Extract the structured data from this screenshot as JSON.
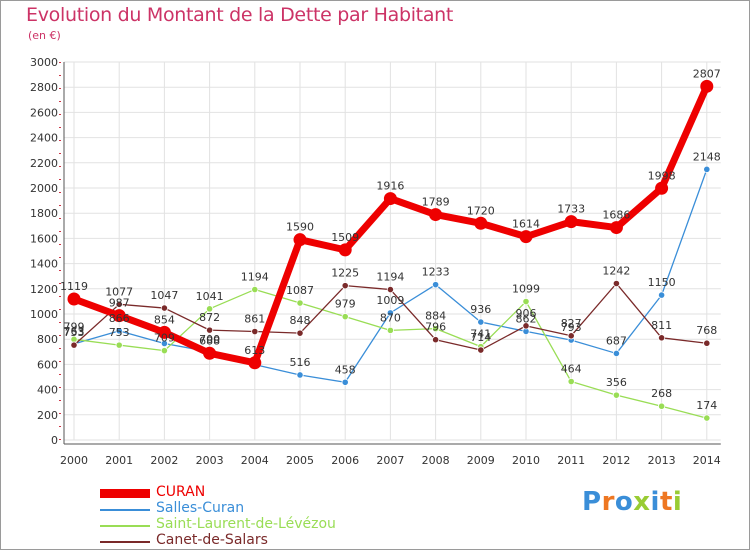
{
  "chart_data": {
    "type": "line",
    "title": "Evolution du Montant de la Dette par Habitant",
    "unit_label": "(en €)",
    "xlabel": "",
    "ylabel": "",
    "x": [
      "2000",
      "2001",
      "2002",
      "2003",
      "2004",
      "2005",
      "2006",
      "2007",
      "2008",
      "2009",
      "2010",
      "2011",
      "2012",
      "2013",
      "2014"
    ],
    "ylim": [
      0,
      3000
    ],
    "yticks": [
      "0",
      "200",
      "400",
      "600",
      "800",
      "1000",
      "1200",
      "1400",
      "1600",
      "1800",
      "2000",
      "2200",
      "2400",
      "2600",
      "2800",
      "3000"
    ],
    "grid": true,
    "legend_position": "bottom-left",
    "series": [
      {
        "name": "CURAN",
        "color": "#ee0000",
        "labels": true,
        "values": [
          1119,
          987,
          854,
          688,
          613,
          1590,
          1509,
          1916,
          1789,
          1720,
          1614,
          1733,
          1686,
          1998,
          2807
        ]
      },
      {
        "name": "Salles-Curan",
        "color": "#3a8ed8",
        "labels": false,
        "values": [
          763,
          866,
          766,
          700,
          598,
          516,
          458,
          1009,
          1233,
          936,
          862,
          793,
          687,
          1150,
          2148
        ]
      },
      {
        "name": "Saint-Laurent-de-Lévézou",
        "color": "#99dd55",
        "labels": false,
        "values": [
          799,
          753,
          709,
          1041,
          1194,
          1087,
          979,
          870,
          884,
          741,
          1099,
          464,
          356,
          268,
          174
        ]
      },
      {
        "name": "Canet-de-Salars",
        "color": "#7a2a2a",
        "labels": false,
        "values": [
          753,
          1077,
          1047,
          872,
          861,
          848,
          1225,
          1194,
          796,
          714,
          906,
          827,
          1242,
          811,
          768
        ]
      }
    ],
    "point_labels": [
      {
        "x": "2000",
        "text": "1119",
        "value": 1119
      },
      {
        "x": "2000",
        "text": "799",
        "value": 799
      },
      {
        "x": "2000",
        "text": "763",
        "value": 763
      },
      {
        "x": "2000",
        "text": "753",
        "value": 753
      },
      {
        "x": "2001",
        "text": "1077",
        "value": 1077
      },
      {
        "x": "2001",
        "text": "987",
        "value": 987
      },
      {
        "x": "2001",
        "text": "866",
        "value": 866
      },
      {
        "x": "2001",
        "text": "753",
        "value": 753
      },
      {
        "x": "2002",
        "text": "1047",
        "value": 1047
      },
      {
        "x": "2002",
        "text": "854",
        "value": 854
      },
      {
        "x": "2002",
        "text": "709",
        "value": 709
      },
      {
        "x": "2003",
        "text": "1041",
        "value": 1041
      },
      {
        "x": "2003",
        "text": "872",
        "value": 872
      },
      {
        "x": "2003",
        "text": "700",
        "value": 700
      },
      {
        "x": "2003",
        "text": "688",
        "value": 688
      },
      {
        "x": "2004",
        "text": "1194",
        "value": 1194
      },
      {
        "x": "2004",
        "text": "861",
        "value": 861
      },
      {
        "x": "2004",
        "text": "613",
        "value": 613
      },
      {
        "x": "2005",
        "text": "1590",
        "value": 1590
      },
      {
        "x": "2005",
        "text": "1087",
        "value": 1087
      },
      {
        "x": "2005",
        "text": "848",
        "value": 848
      },
      {
        "x": "2005",
        "text": "516",
        "value": 516
      },
      {
        "x": "2006",
        "text": "1509",
        "value": 1509
      },
      {
        "x": "2006",
        "text": "1225",
        "value": 1225
      },
      {
        "x": "2006",
        "text": "979",
        "value": 979
      },
      {
        "x": "2006",
        "text": "458",
        "value": 458
      },
      {
        "x": "2007",
        "text": "1916",
        "value": 1916
      },
      {
        "x": "2007",
        "text": "1194",
        "value": 1194
      },
      {
        "x": "2007",
        "text": "1009",
        "value": 1009
      },
      {
        "x": "2007",
        "text": "870",
        "value": 870
      },
      {
        "x": "2008",
        "text": "1789",
        "value": 1789
      },
      {
        "x": "2008",
        "text": "1233",
        "value": 1233
      },
      {
        "x": "2008",
        "text": "884",
        "value": 884
      },
      {
        "x": "2008",
        "text": "796",
        "value": 796
      },
      {
        "x": "2009",
        "text": "1720",
        "value": 1720
      },
      {
        "x": "2009",
        "text": "936",
        "value": 936
      },
      {
        "x": "2009",
        "text": "741",
        "value": 741
      },
      {
        "x": "2009",
        "text": "714",
        "value": 714
      },
      {
        "x": "2010",
        "text": "1614",
        "value": 1614
      },
      {
        "x": "2010",
        "text": "1099",
        "value": 1099
      },
      {
        "x": "2010",
        "text": "906",
        "value": 906
      },
      {
        "x": "2010",
        "text": "862",
        "value": 862
      },
      {
        "x": "2011",
        "text": "1733",
        "value": 1733
      },
      {
        "x": "2011",
        "text": "827",
        "value": 827
      },
      {
        "x": "2011",
        "text": "793",
        "value": 793
      },
      {
        "x": "2011",
        "text": "464",
        "value": 464
      },
      {
        "x": "2012",
        "text": "1686",
        "value": 1686
      },
      {
        "x": "2012",
        "text": "1242",
        "value": 1242
      },
      {
        "x": "2012",
        "text": "687",
        "value": 687
      },
      {
        "x": "2012",
        "text": "356",
        "value": 356
      },
      {
        "x": "2013",
        "text": "1998",
        "value": 1998
      },
      {
        "x": "2013",
        "text": "1150",
        "value": 1150
      },
      {
        "x": "2013",
        "text": "811",
        "value": 811
      },
      {
        "x": "2013",
        "text": "268",
        "value": 268
      },
      {
        "x": "2014",
        "text": "2807",
        "value": 2807
      },
      {
        "x": "2014",
        "text": "2148",
        "value": 2148
      },
      {
        "x": "2014",
        "text": "768",
        "value": 768
      },
      {
        "x": "2014",
        "text": "174",
        "value": 174
      }
    ]
  },
  "logo": {
    "text": "Proxiti",
    "colors": [
      "#3a8ed8",
      "#ee7722",
      "#3a8ed8",
      "#99cc33",
      "#3a8ed8",
      "#ee7722",
      "#99cc33"
    ]
  }
}
